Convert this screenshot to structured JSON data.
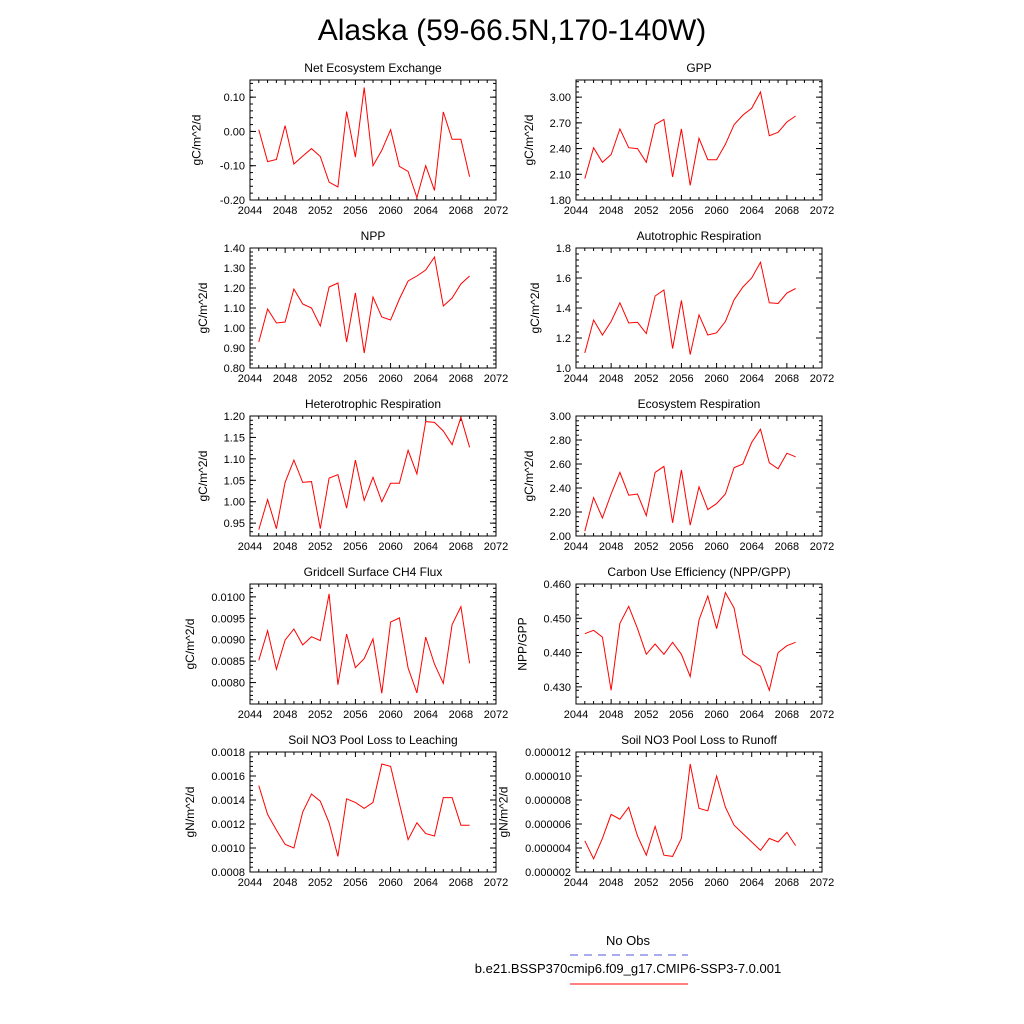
{
  "figure": {
    "title": "Alaska (59-66.5N,170-140W)",
    "series_color": "#ff0000",
    "obs_color": "#5555dd"
  },
  "legend": {
    "obs_label": "No Obs",
    "model_label": "b.e21.BSSP370cmip6.f09_g17.CMIP6-SSP3-7.0.001"
  },
  "chart_data": [
    {
      "type": "line",
      "title": "Net Ecosystem Exchange",
      "ylabel": "gC/m^2/d",
      "xlim": [
        2044,
        2072
      ],
      "ylim": [
        -0.2,
        0.15
      ],
      "xticks": [
        "2044",
        "2048",
        "2052",
        "2056",
        "2060",
        "2064",
        "2068",
        "2072"
      ],
      "yticks": [
        "-0.20",
        "-0.10",
        "0.00",
        "0.10"
      ],
      "x": [
        2045,
        2046,
        2047,
        2048,
        2049,
        2050,
        2051,
        2052,
        2053,
        2054,
        2055,
        2056,
        2057,
        2058,
        2059,
        2060,
        2061,
        2062,
        2063,
        2064,
        2065,
        2066,
        2067,
        2068,
        2069
      ],
      "series": [
        {
          "name": "b.e21.BSSP370cmip6.f09_g17.CMIP6-SSP3-7.0.001",
          "values": [
            0.005,
            -0.088,
            -0.082,
            0.017,
            -0.095,
            -0.072,
            -0.05,
            -0.073,
            -0.148,
            -0.162,
            0.058,
            -0.075,
            0.128,
            -0.1,
            -0.055,
            0.005,
            -0.102,
            -0.117,
            -0.193,
            -0.1,
            -0.172,
            0.057,
            -0.023,
            -0.023,
            -0.132
          ]
        }
      ]
    },
    {
      "type": "line",
      "title": "GPP",
      "ylabel": "gC/m^2/d",
      "xlim": [
        2044,
        2072
      ],
      "ylim": [
        1.8,
        3.2
      ],
      "xticks": [
        "2044",
        "2048",
        "2052",
        "2056",
        "2060",
        "2064",
        "2068",
        "2072"
      ],
      "yticks": [
        "1.80",
        "2.10",
        "2.40",
        "2.70",
        "3.00"
      ],
      "x": [
        2045,
        2046,
        2047,
        2048,
        2049,
        2050,
        2051,
        2052,
        2053,
        2054,
        2055,
        2056,
        2057,
        2058,
        2059,
        2060,
        2061,
        2062,
        2063,
        2064,
        2065,
        2066,
        2067,
        2068,
        2069
      ],
      "series": [
        {
          "name": "b.e21.BSSP370cmip6.f09_g17.CMIP6-SSP3-7.0.001",
          "values": [
            2.05,
            2.41,
            2.24,
            2.33,
            2.63,
            2.41,
            2.4,
            2.24,
            2.68,
            2.74,
            2.07,
            2.63,
            1.97,
            2.52,
            2.27,
            2.27,
            2.45,
            2.68,
            2.79,
            2.87,
            3.06,
            2.55,
            2.59,
            2.71,
            2.78
          ]
        }
      ]
    },
    {
      "type": "line",
      "title": "NPP",
      "ylabel": "gC/m^2/d",
      "xlim": [
        2044,
        2072
      ],
      "ylim": [
        0.8,
        1.4
      ],
      "xticks": [
        "2044",
        "2048",
        "2052",
        "2056",
        "2060",
        "2064",
        "2068",
        "2072"
      ],
      "yticks": [
        "0.80",
        "0.90",
        "1.00",
        "1.10",
        "1.20",
        "1.30",
        "1.40"
      ],
      "x": [
        2045,
        2046,
        2047,
        2048,
        2049,
        2050,
        2051,
        2052,
        2053,
        2054,
        2055,
        2056,
        2057,
        2058,
        2059,
        2060,
        2061,
        2062,
        2063,
        2064,
        2065,
        2066,
        2067,
        2068,
        2069
      ],
      "series": [
        {
          "name": "b.e21.BSSP370cmip6.f09_g17.CMIP6-SSP3-7.0.001",
          "values": [
            0.93,
            1.095,
            1.025,
            1.03,
            1.195,
            1.12,
            1.1,
            1.01,
            1.205,
            1.225,
            0.93,
            1.175,
            0.875,
            1.155,
            1.055,
            1.04,
            1.145,
            1.235,
            1.26,
            1.29,
            1.355,
            1.11,
            1.15,
            1.22,
            1.26
          ]
        }
      ]
    },
    {
      "type": "line",
      "title": "Autotrophic Respiration",
      "ylabel": "gC/m^2/d",
      "xlim": [
        2044,
        2072
      ],
      "ylim": [
        1.0,
        1.8
      ],
      "xticks": [
        "2044",
        "2048",
        "2052",
        "2056",
        "2060",
        "2064",
        "2068",
        "2072"
      ],
      "yticks": [
        "1.0",
        "1.2",
        "1.4",
        "1.6",
        "1.8"
      ],
      "x": [
        2045,
        2046,
        2047,
        2048,
        2049,
        2050,
        2051,
        2052,
        2053,
        2054,
        2055,
        2056,
        2057,
        2058,
        2059,
        2060,
        2061,
        2062,
        2063,
        2064,
        2065,
        2066,
        2067,
        2068,
        2069
      ],
      "series": [
        {
          "name": "b.e21.BSSP370cmip6.f09_g17.CMIP6-SSP3-7.0.001",
          "values": [
            1.1,
            1.32,
            1.22,
            1.31,
            1.435,
            1.3,
            1.305,
            1.23,
            1.48,
            1.52,
            1.13,
            1.45,
            1.09,
            1.355,
            1.22,
            1.235,
            1.31,
            1.455,
            1.54,
            1.6,
            1.705,
            1.435,
            1.43,
            1.5,
            1.53
          ]
        }
      ]
    },
    {
      "type": "line",
      "title": "Heterotrophic Respiration",
      "ylabel": "gC/m^2/d",
      "xlim": [
        2044,
        2072
      ],
      "ylim": [
        0.92,
        1.2
      ],
      "xticks": [
        "2044",
        "2048",
        "2052",
        "2056",
        "2060",
        "2064",
        "2068",
        "2072"
      ],
      "yticks": [
        "0.95",
        "1.00",
        "1.05",
        "1.10",
        "1.15",
        "1.20"
      ],
      "x": [
        2045,
        2046,
        2047,
        2048,
        2049,
        2050,
        2051,
        2052,
        2053,
        2054,
        2055,
        2056,
        2057,
        2058,
        2059,
        2060,
        2061,
        2062,
        2063,
        2064,
        2065,
        2066,
        2067,
        2068,
        2069
      ],
      "series": [
        {
          "name": "b.e21.BSSP370cmip6.f09_g17.CMIP6-SSP3-7.0.001",
          "values": [
            0.935,
            1.005,
            0.937,
            1.045,
            1.097,
            1.045,
            1.047,
            0.937,
            1.055,
            1.063,
            0.985,
            1.097,
            1.003,
            1.057,
            1.0,
            1.043,
            1.043,
            1.12,
            1.065,
            1.187,
            1.185,
            1.165,
            1.133,
            1.197,
            1.127
          ]
        }
      ]
    },
    {
      "type": "line",
      "title": "Ecosystem Respiration",
      "ylabel": "gC/m^2/d",
      "xlim": [
        2044,
        2072
      ],
      "ylim": [
        2.0,
        3.0
      ],
      "xticks": [
        "2044",
        "2048",
        "2052",
        "2056",
        "2060",
        "2064",
        "2068",
        "2072"
      ],
      "yticks": [
        "2.00",
        "2.20",
        "2.40",
        "2.60",
        "2.80",
        "3.00"
      ],
      "x": [
        2045,
        2046,
        2047,
        2048,
        2049,
        2050,
        2051,
        2052,
        2053,
        2054,
        2055,
        2056,
        2057,
        2058,
        2059,
        2060,
        2061,
        2062,
        2063,
        2064,
        2065,
        2066,
        2067,
        2068,
        2069
      ],
      "series": [
        {
          "name": "b.e21.BSSP370cmip6.f09_g17.CMIP6-SSP3-7.0.001",
          "values": [
            2.04,
            2.32,
            2.15,
            2.35,
            2.53,
            2.34,
            2.35,
            2.17,
            2.53,
            2.58,
            2.11,
            2.55,
            2.09,
            2.41,
            2.22,
            2.27,
            2.35,
            2.57,
            2.6,
            2.78,
            2.89,
            2.61,
            2.56,
            2.69,
            2.66
          ]
        }
      ]
    },
    {
      "type": "line",
      "title": "Gridcell Surface CH4 Flux",
      "ylabel": "gC/m^2/d",
      "xlim": [
        2044,
        2072
      ],
      "ylim": [
        0.0075,
        0.0103
      ],
      "xticks": [
        "2044",
        "2048",
        "2052",
        "2056",
        "2060",
        "2064",
        "2068",
        "2072"
      ],
      "yticks": [
        "0.0080",
        "0.0085",
        "0.0090",
        "0.0095",
        "0.0100"
      ],
      "x": [
        2045,
        2046,
        2047,
        2048,
        2049,
        2050,
        2051,
        2052,
        2053,
        2054,
        2055,
        2056,
        2057,
        2058,
        2059,
        2060,
        2061,
        2062,
        2063,
        2064,
        2065,
        2066,
        2067,
        2068,
        2069
      ],
      "series": [
        {
          "name": "b.e21.BSSP370cmip6.f09_g17.CMIP6-SSP3-7.0.001",
          "values": [
            0.00852,
            0.00921,
            0.00831,
            0.00899,
            0.00925,
            0.00888,
            0.00907,
            0.00898,
            0.01007,
            0.00795,
            0.00913,
            0.00835,
            0.00856,
            0.00902,
            0.00775,
            0.00941,
            0.00951,
            0.00834,
            0.00776,
            0.00906,
            0.00843,
            0.00798,
            0.00935,
            0.00977,
            0.00845
          ]
        }
      ]
    },
    {
      "type": "line",
      "title": "Carbon Use Efficiency (NPP/GPP)",
      "ylabel": "NPP/GPP",
      "xlim": [
        2044,
        2072
      ],
      "ylim": [
        0.425,
        0.46
      ],
      "xticks": [
        "2044",
        "2048",
        "2052",
        "2056",
        "2060",
        "2064",
        "2068",
        "2072"
      ],
      "yticks": [
        "0.430",
        "0.440",
        "0.450",
        "0.460"
      ],
      "x": [
        2045,
        2046,
        2047,
        2048,
        2049,
        2050,
        2051,
        2052,
        2053,
        2054,
        2055,
        2056,
        2057,
        2058,
        2059,
        2060,
        2061,
        2062,
        2063,
        2064,
        2065,
        2066,
        2067,
        2068,
        2069
      ],
      "series": [
        {
          "name": "b.e21.BSSP370cmip6.f09_g17.CMIP6-SSP3-7.0.001",
          "values": [
            0.4455,
            0.4465,
            0.4445,
            0.429,
            0.4485,
            0.4535,
            0.447,
            0.4395,
            0.4425,
            0.4395,
            0.443,
            0.4395,
            0.433,
            0.4495,
            0.4565,
            0.447,
            0.4575,
            0.453,
            0.4395,
            0.4375,
            0.436,
            0.429,
            0.44,
            0.442,
            0.443
          ]
        }
      ]
    },
    {
      "type": "line",
      "title": "Soil NO3 Pool Loss to Leaching",
      "ylabel": "gN/m^2/d",
      "xlim": [
        2044,
        2072
      ],
      "ylim": [
        0.0008,
        0.0018
      ],
      "xticks": [
        "2044",
        "2048",
        "2052",
        "2056",
        "2060",
        "2064",
        "2068",
        "2072"
      ],
      "yticks": [
        "0.0008",
        "0.0010",
        "0.0012",
        "0.0014",
        "0.0016",
        "0.0018"
      ],
      "x": [
        2045,
        2046,
        2047,
        2048,
        2049,
        2050,
        2051,
        2052,
        2053,
        2054,
        2055,
        2056,
        2057,
        2058,
        2059,
        2060,
        2061,
        2062,
        2063,
        2064,
        2065,
        2066,
        2067,
        2068,
        2069
      ],
      "series": [
        {
          "name": "b.e21.BSSP370cmip6.f09_g17.CMIP6-SSP3-7.0.001",
          "values": [
            0.00152,
            0.00128,
            0.00115,
            0.00103,
            0.001,
            0.0013,
            0.00145,
            0.00139,
            0.00121,
            0.00093,
            0.00141,
            0.00138,
            0.00133,
            0.00138,
            0.0017,
            0.00168,
            0.00137,
            0.00107,
            0.00121,
            0.00112,
            0.0011,
            0.00142,
            0.00142,
            0.00119,
            0.00119
          ]
        }
      ]
    },
    {
      "type": "line",
      "title": "Soil NO3 Pool Loss to Runoff",
      "ylabel": "gN/m^2/d",
      "xlim": [
        2044,
        2072
      ],
      "ylim": [
        2e-06,
        1.2e-05
      ],
      "xticks": [
        "2044",
        "2048",
        "2052",
        "2056",
        "2060",
        "2064",
        "2068",
        "2072"
      ],
      "yticks": [
        "0.000002",
        "0.000004",
        "0.000006",
        "0.000008",
        "0.000010",
        "0.000012"
      ],
      "x": [
        2045,
        2046,
        2047,
        2048,
        2049,
        2050,
        2051,
        2052,
        2053,
        2054,
        2055,
        2056,
        2057,
        2058,
        2059,
        2060,
        2061,
        2062,
        2063,
        2064,
        2065,
        2066,
        2067,
        2068,
        2069
      ],
      "series": [
        {
          "name": "b.e21.BSSP370cmip6.f09_g17.CMIP6-SSP3-7.0.001",
          "values": [
            4.6e-06,
            3.1e-06,
            4.8e-06,
            6.8e-06,
            6.4e-06,
            7.4e-06,
            5e-06,
            3.4e-06,
            5.8e-06,
            3.4e-06,
            3.3e-06,
            4.8e-06,
            1.1e-05,
            7.3e-06,
            7.1e-06,
            1e-05,
            7.4e-06,
            5.9e-06,
            5.2e-06,
            4.5e-06,
            3.8e-06,
            4.8e-06,
            4.5e-06,
            5.3e-06,
            4.2e-06
          ]
        }
      ]
    }
  ]
}
